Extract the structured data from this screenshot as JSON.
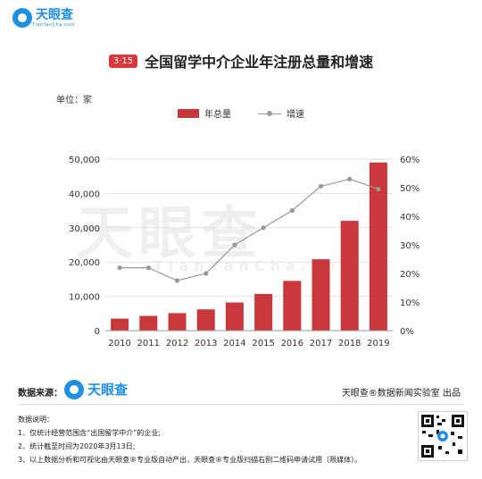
{
  "header": {
    "logo_text": "天眼查",
    "logo_sub": "TianYanCha.com"
  },
  "title": {
    "badge": "3·15",
    "text": "全国留学中介企业年注册总量和增速"
  },
  "unit_label": "单位：家",
  "legend": {
    "bar_label": "年总量",
    "line_label": "增速"
  },
  "watermark": {
    "main": "天眼查",
    "sub": "TianYanCha.com"
  },
  "chart_data": {
    "type": "bar",
    "categories": [
      "2010",
      "2011",
      "2012",
      "2013",
      "2014",
      "2015",
      "2016",
      "2017",
      "2018",
      "2019"
    ],
    "series": [
      {
        "name": "年总量",
        "type": "bar",
        "axis": "left",
        "color": "#c8373a",
        "values": [
          3500,
          4300,
          5100,
          6200,
          8200,
          10700,
          14500,
          20800,
          32000,
          49000
        ]
      },
      {
        "name": "增速",
        "type": "line",
        "axis": "right",
        "color": "#999999",
        "values": [
          22,
          22,
          17.5,
          20,
          30,
          36,
          42,
          50.5,
          53,
          49.5
        ]
      }
    ],
    "y_left": {
      "min": 0,
      "max": 50000,
      "ticks": [
        "0",
        "10,000",
        "20,000",
        "30,000",
        "40,000",
        "50,000"
      ]
    },
    "y_right": {
      "min": 0,
      "max": 60,
      "ticks": [
        "0%",
        "10%",
        "20%",
        "30%",
        "40%",
        "50%",
        "60%"
      ]
    },
    "grid": true,
    "legend_position": "top"
  },
  "footer": {
    "source_label": "数据来源：",
    "source_logo": "天眼查",
    "credit": "天眼查®数据新闻实验室 出品",
    "notes_title": "数据说明：",
    "notes": [
      "1、仅统计经营范围含“出国留学中介”的企业;",
      "2、统计截至时间为2020年3月13日;",
      "3、以上数据分析和可视化由天眼查®专业版自动产出，天眼查®专业版扫描右侧二维码申请试用（限媒体）。"
    ]
  }
}
